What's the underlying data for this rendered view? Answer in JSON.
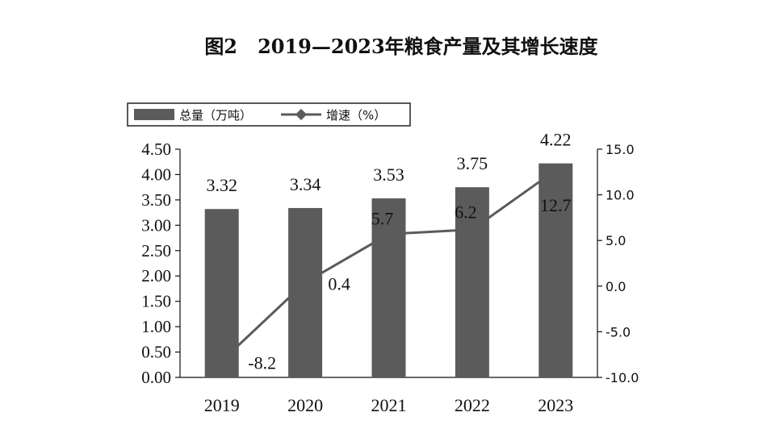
{
  "chart_data": {
    "type": "bar",
    "title": "图2   2019—2023年粮食产量及其增长速度",
    "categories": [
      "2019",
      "2020",
      "2021",
      "2022",
      "2023"
    ],
    "series": [
      {
        "name": "总量（万吨）",
        "type": "bar",
        "axis": "left",
        "values": [
          3.32,
          3.34,
          3.53,
          3.75,
          4.22
        ],
        "labels": [
          "3.32",
          "3.34",
          "3.53",
          "3.75",
          "4.22"
        ],
        "color": "#5b5b5b"
      },
      {
        "name": "增速（%）",
        "type": "line",
        "axis": "right",
        "values": [
          -8.2,
          0.4,
          5.7,
          6.2,
          12.7
        ],
        "labels": [
          "-8.2",
          "0.4",
          "5.7",
          "6.2",
          "12.7"
        ],
        "color": "#5b5b5b"
      }
    ],
    "y_left": {
      "ylim": [
        0,
        4.5
      ],
      "ticks": [
        "0.00",
        "0.50",
        "1.00",
        "1.50",
        "2.00",
        "2.50",
        "3.00",
        "3.50",
        "4.00",
        "4.50"
      ]
    },
    "y_right": {
      "ylim": [
        -10,
        15
      ],
      "ticks": [
        "-10.0",
        "-5.0",
        "0.0",
        "5.0",
        "10.0",
        "15.0"
      ]
    },
    "xlabel": "",
    "ylabel": "",
    "grid": false,
    "legend_position": "top-left"
  }
}
